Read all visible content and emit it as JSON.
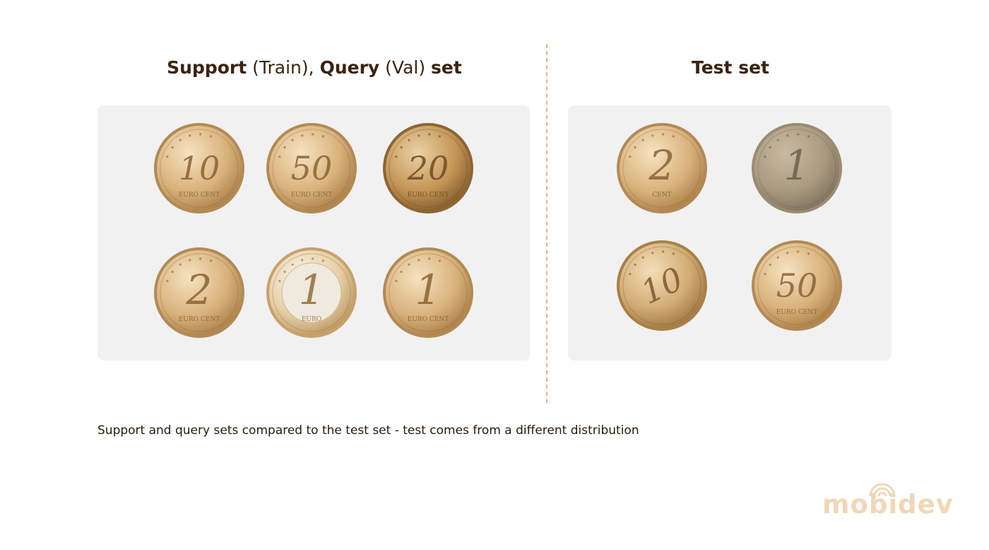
{
  "headings": {
    "left": {
      "support": "Support",
      "train": " (Train), ",
      "query": "Query",
      "val": " (Val) ",
      "set": "set"
    },
    "right": "Test set"
  },
  "support_query_coins": [
    {
      "value": "10",
      "label": "EURO CENT",
      "style": "gold"
    },
    {
      "value": "50",
      "label": "EURO CENT",
      "style": "gold"
    },
    {
      "value": "20",
      "label": "EURO CENT",
      "style": "gold-dark"
    },
    {
      "value": "2",
      "label": "EURO CENT",
      "style": "gold"
    },
    {
      "value": "1",
      "label": "EURO",
      "style": "bimetal"
    },
    {
      "value": "1",
      "label": "EURO CENT",
      "style": "gold"
    }
  ],
  "test_coins": [
    {
      "value": "2",
      "label": "CENT",
      "style": "gold"
    },
    {
      "value": "1",
      "label": "",
      "style": "grey"
    },
    {
      "value": "10",
      "label": "",
      "style": "gold-rotated"
    },
    {
      "value": "50",
      "label": "EURO CENT",
      "style": "gold"
    }
  ],
  "caption": "Support and query sets compared to the test set - test comes from a different distribution",
  "logo": {
    "text": "mobidev"
  },
  "colors": {
    "heading": "#3a2410",
    "panel": "#f1f1f1",
    "divider": "#e0b88e",
    "logo": "#f0d7b8"
  }
}
